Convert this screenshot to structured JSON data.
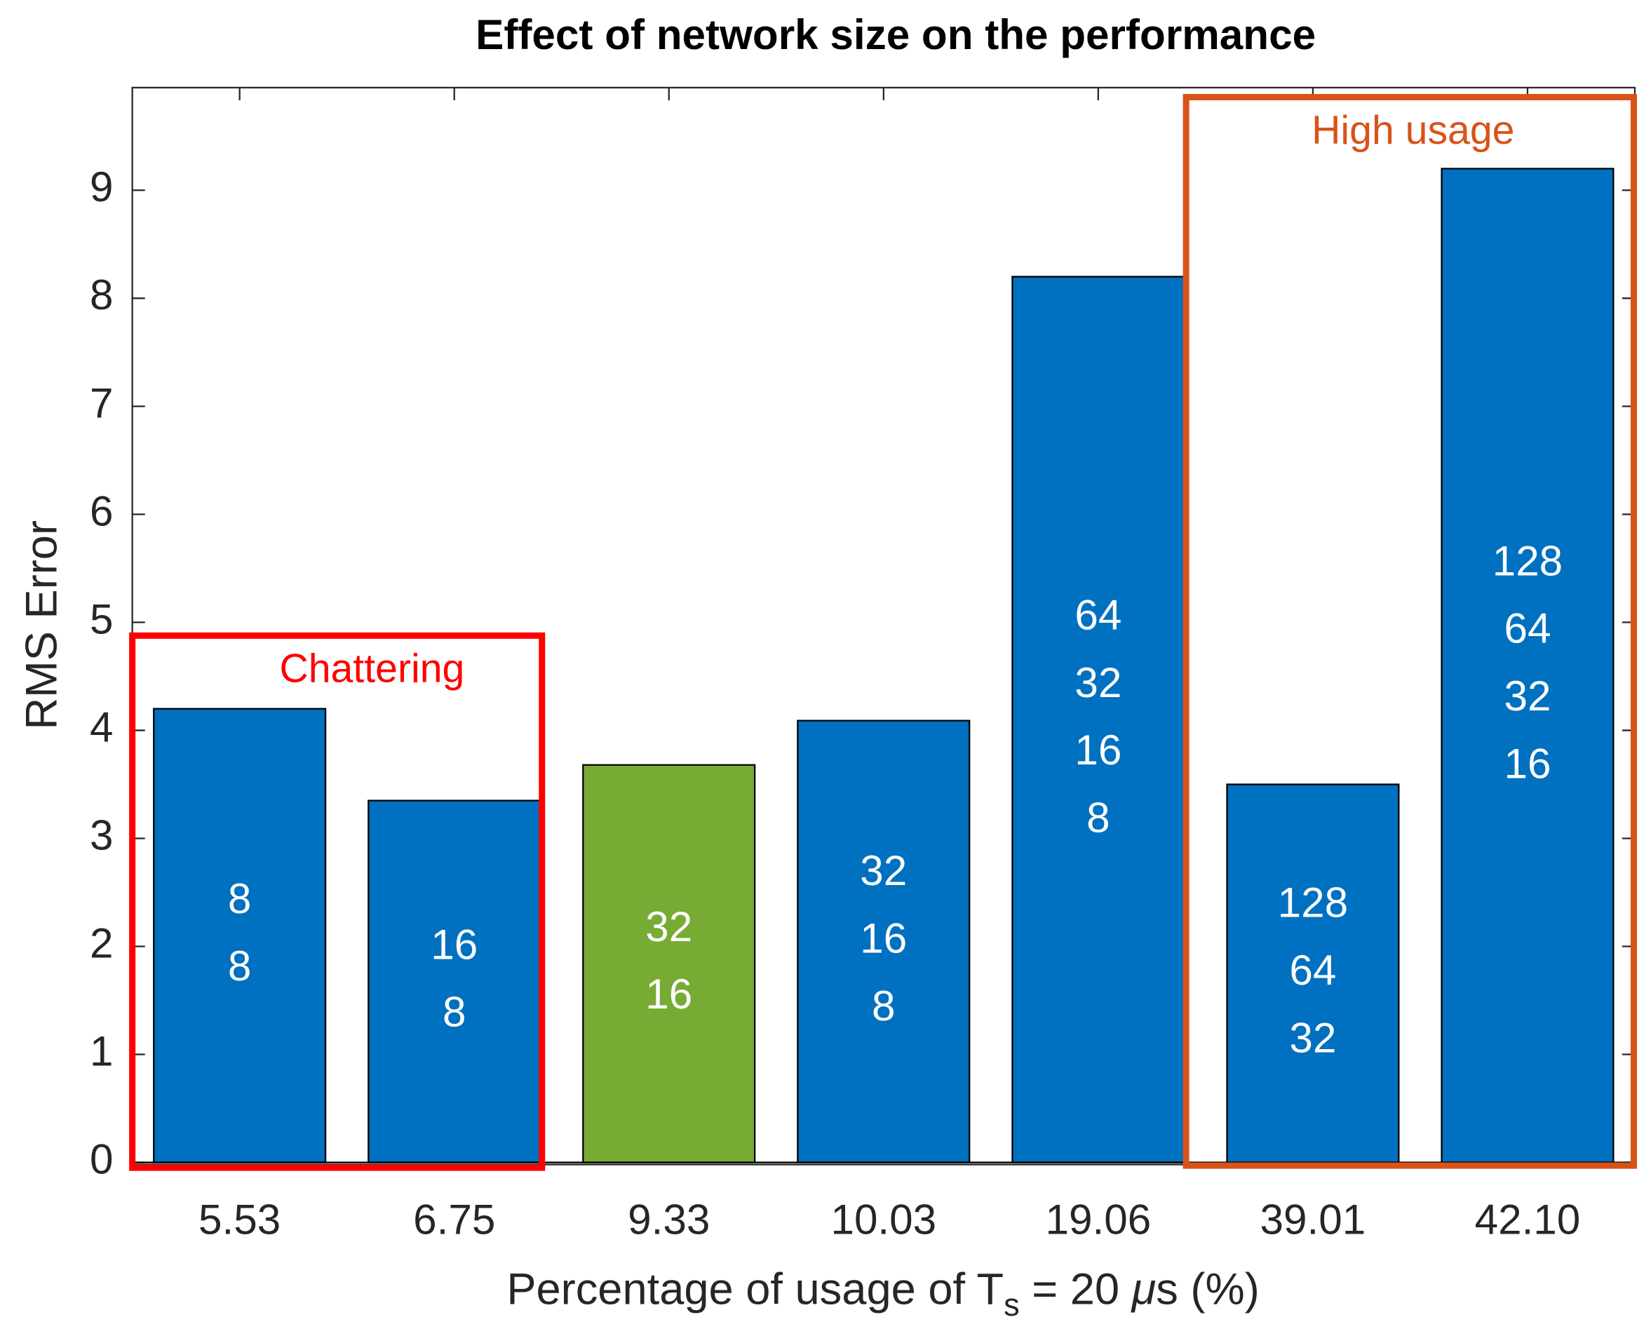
{
  "chart_data": {
    "type": "bar",
    "title": "Effect of network size on the performance",
    "ylabel": "RMS Error",
    "xlabel_parts": [
      "Percentage of usage of T",
      "s",
      " = 20 ",
      "μ",
      "s (%)"
    ],
    "categories": [
      "5.53",
      "6.75",
      "9.33",
      "10.03",
      "19.06",
      "39.01",
      "42.10"
    ],
    "values": [
      4.2,
      3.35,
      3.68,
      4.09,
      8.2,
      3.5,
      9.2
    ],
    "colors": [
      "#0070c0",
      "#0070c0",
      "#77ab33",
      "#0070c0",
      "#0070c0",
      "#0070c0",
      "#0070c0"
    ],
    "bar_labels": [
      [
        8,
        8
      ],
      [
        16,
        8
      ],
      [
        32,
        16
      ],
      [
        32,
        16,
        8
      ],
      [
        64,
        32,
        16,
        8
      ],
      [
        128,
        64,
        32
      ],
      [
        128,
        64,
        32,
        16
      ]
    ],
    "ylim": [
      0,
      9.95
    ],
    "yticks": [
      0,
      1,
      2,
      3,
      4,
      5,
      6,
      7,
      8,
      9
    ],
    "grid": false,
    "annotations": [
      {
        "text": "Chattering",
        "color": "#ff0000"
      },
      {
        "text": "High usage",
        "color": "#d95319"
      }
    ]
  }
}
